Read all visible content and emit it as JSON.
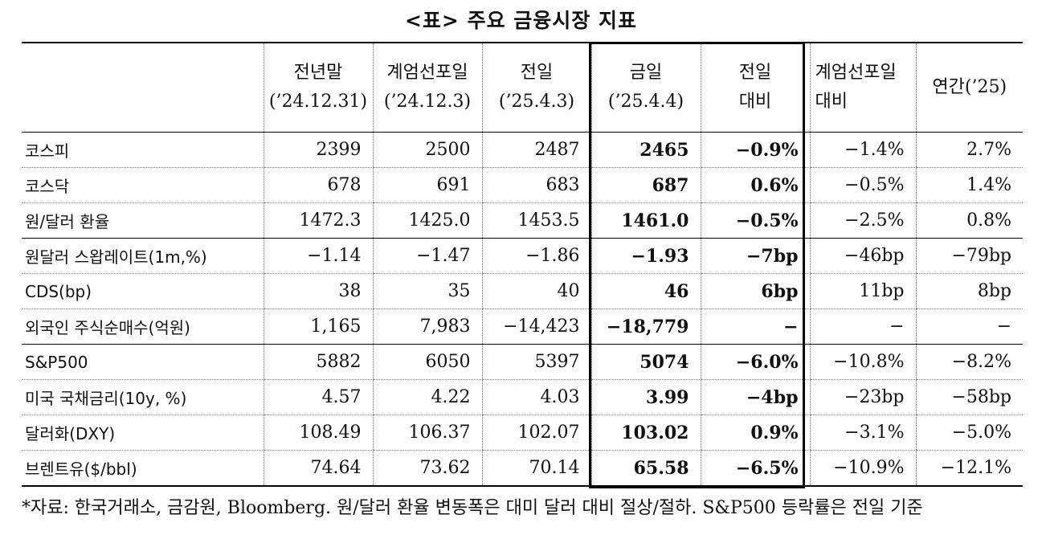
{
  "title": "<표> 주요 금융시장 지표",
  "headers": [
    {
      "line1": "",
      "line2": ""
    },
    {
      "line1": "전년말",
      "line2": "(’24.12.31)"
    },
    {
      "line1": "계엄선포일",
      "line2": "(’24.12.3)"
    },
    {
      "line1": "전일",
      "line2": "(’25.4.3)"
    },
    {
      "line1": "금일",
      "line2": "(’25.4.4)"
    },
    {
      "line1": "전일",
      "line2": "대비"
    },
    {
      "line1": "계엄선포일",
      "line2": "대비"
    },
    {
      "line1": "연간(’25)",
      "line2": ""
    }
  ],
  "rows": [
    [
      "코스피",
      "2399",
      "2500",
      "2487",
      "2465",
      "−0.9%",
      "−1.4%",
      "2.7%"
    ],
    [
      "코스닥",
      "678",
      "691",
      "683",
      "687",
      "0.6%",
      "−0.5%",
      "1.4%"
    ],
    [
      "원/달러 환율",
      "1472.3",
      "1425.0",
      "1453.5",
      "1461.0",
      "−0.5%",
      "−2.5%",
      "0.8%"
    ],
    [
      "원달러 스왑레이트(1m,%)",
      "−1.14",
      "−1.47",
      "−1.86",
      "−1.93",
      "−7bp",
      "−46bp",
      "−79bp"
    ],
    [
      "CDS(bp)",
      "38",
      "35",
      "40",
      "46",
      "6bp",
      "11bp",
      "8bp"
    ],
    [
      "외국인 주식순매수(억원)",
      "1,165",
      "7,983",
      "−14,423",
      "−18,779",
      "−",
      "−",
      "−"
    ],
    [
      "S&P500",
      "5882",
      "6050",
      "5397",
      "5074",
      "−6.0%",
      "−10.8%",
      "−8.2%"
    ],
    [
      "미국 국채금리(10y, %)",
      "4.57",
      "4.22",
      "4.03",
      "3.99",
      "−4bp",
      "−23bp",
      "−58bp"
    ],
    [
      "달러화(DXY)",
      "108.49",
      "106.37",
      "102.07",
      "103.02",
      "0.9%",
      "−3.1%",
      "−5.0%"
    ],
    [
      "브렌트유($/bbl)",
      "74.64",
      "73.62",
      "70.14",
      "65.58",
      "−6.5%",
      "−10.9%",
      "−12.1%"
    ]
  ],
  "footnote": "*자료: 한국거래소, 금감원, Bloomberg. 원/달러 환율 변동폭은 대미 달러 대비 절상/절하. S&P500 등락률은 전일 기준"
}
